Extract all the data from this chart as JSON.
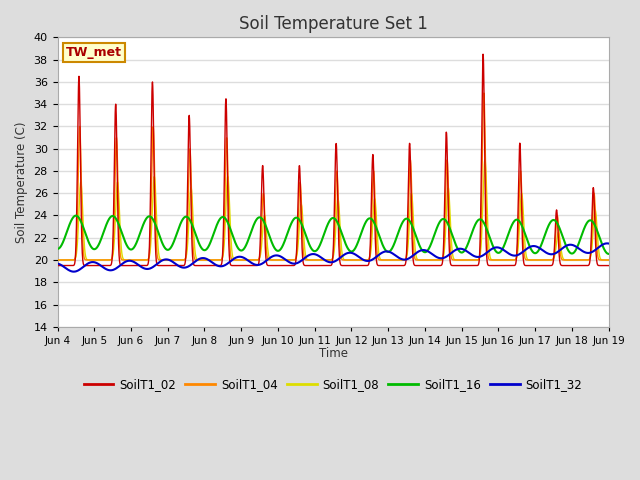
{
  "title": "Soil Temperature Set 1",
  "ylabel": "Soil Temperature (C)",
  "xlabel": "Time",
  "annotation": "TW_met",
  "ylim": [
    14,
    40
  ],
  "yticks": [
    14,
    16,
    18,
    20,
    22,
    24,
    26,
    28,
    30,
    32,
    34,
    36,
    38,
    40
  ],
  "xtick_labels": [
    "Jun 4",
    "Jun 5",
    "Jun 6",
    "Jun 7",
    "Jun 8",
    "Jun 9",
    "Jun 10",
    "Jun 11",
    "Jun 12",
    "Jun 13",
    "Jun 14",
    "Jun 15",
    "Jun 16",
    "Jun 17",
    "Jun 18",
    "Jun 19"
  ],
  "series_colors": {
    "SoilT1_02": "#cc0000",
    "SoilT1_04": "#ff8800",
    "SoilT1_08": "#dddd00",
    "SoilT1_16": "#00bb00",
    "SoilT1_32": "#0000cc"
  },
  "background_color": "#dddddd",
  "plot_bg_color": "#ffffff",
  "grid_color": "#dddddd",
  "n_days": 15,
  "pts_per_day": 144,
  "figsize": [
    6.4,
    4.8
  ],
  "dpi": 100
}
